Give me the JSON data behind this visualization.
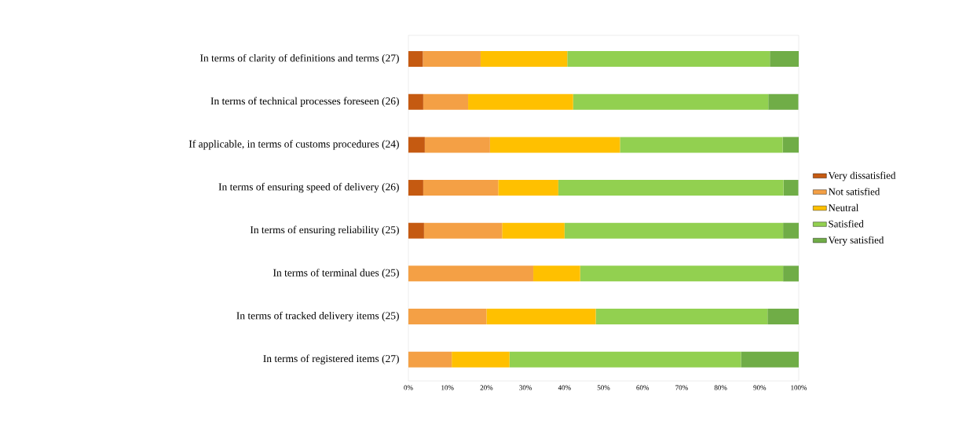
{
  "chart_data": {
    "type": "bar",
    "orientation": "horizontal",
    "stacked": true,
    "categories": [
      "In terms of clarity of definitions and terms (27)",
      "In terms of technical processes foreseen (26)",
      "If applicable, in terms of customs procedures (24)",
      "In terms of ensuring speed of delivery (26)",
      "In terms of ensuring reliability (25)",
      "In terms of terminal dues (25)",
      "In terms of tracked delivery items (25)",
      "In terms of registered items (27)"
    ],
    "series": [
      {
        "name": "Very dissatisfied",
        "color": "#c55a11",
        "values": [
          3.7,
          3.8,
          4.2,
          3.8,
          4,
          0,
          0,
          0
        ]
      },
      {
        "name": "Not satisfied",
        "color": "#f4a045",
        "values": [
          14.8,
          11.5,
          16.7,
          19.2,
          20,
          32,
          20,
          11.1
        ]
      },
      {
        "name": "Neutral",
        "color": "#ffc000",
        "values": [
          22.2,
          26.9,
          33.3,
          15.4,
          16,
          12,
          28,
          14.8
        ]
      },
      {
        "name": "Satisfied",
        "color": "#92d050",
        "values": [
          51.9,
          50,
          41.7,
          57.7,
          56,
          52,
          44,
          59.3
        ]
      },
      {
        "name": "Very satisfied",
        "color": "#70ad47",
        "values": [
          7.4,
          7.7,
          4.2,
          3.8,
          4,
          4,
          8,
          14.8
        ]
      }
    ],
    "xlim": [
      0,
      100
    ],
    "xticks": [
      {
        "value": 0,
        "label": "0%"
      },
      {
        "value": 10,
        "label": "10%"
      },
      {
        "value": 20,
        "label": "20%"
      },
      {
        "value": 30,
        "label": "30%"
      },
      {
        "value": 40,
        "label": "40%"
      },
      {
        "value": 50,
        "label": "50%"
      },
      {
        "value": 60,
        "label": "60%"
      },
      {
        "value": 70,
        "label": "70%"
      },
      {
        "value": 80,
        "label": "80%"
      },
      {
        "value": 90,
        "label": "90%"
      },
      {
        "value": 100,
        "label": "100%"
      }
    ],
    "grid": false,
    "legend": "right"
  }
}
